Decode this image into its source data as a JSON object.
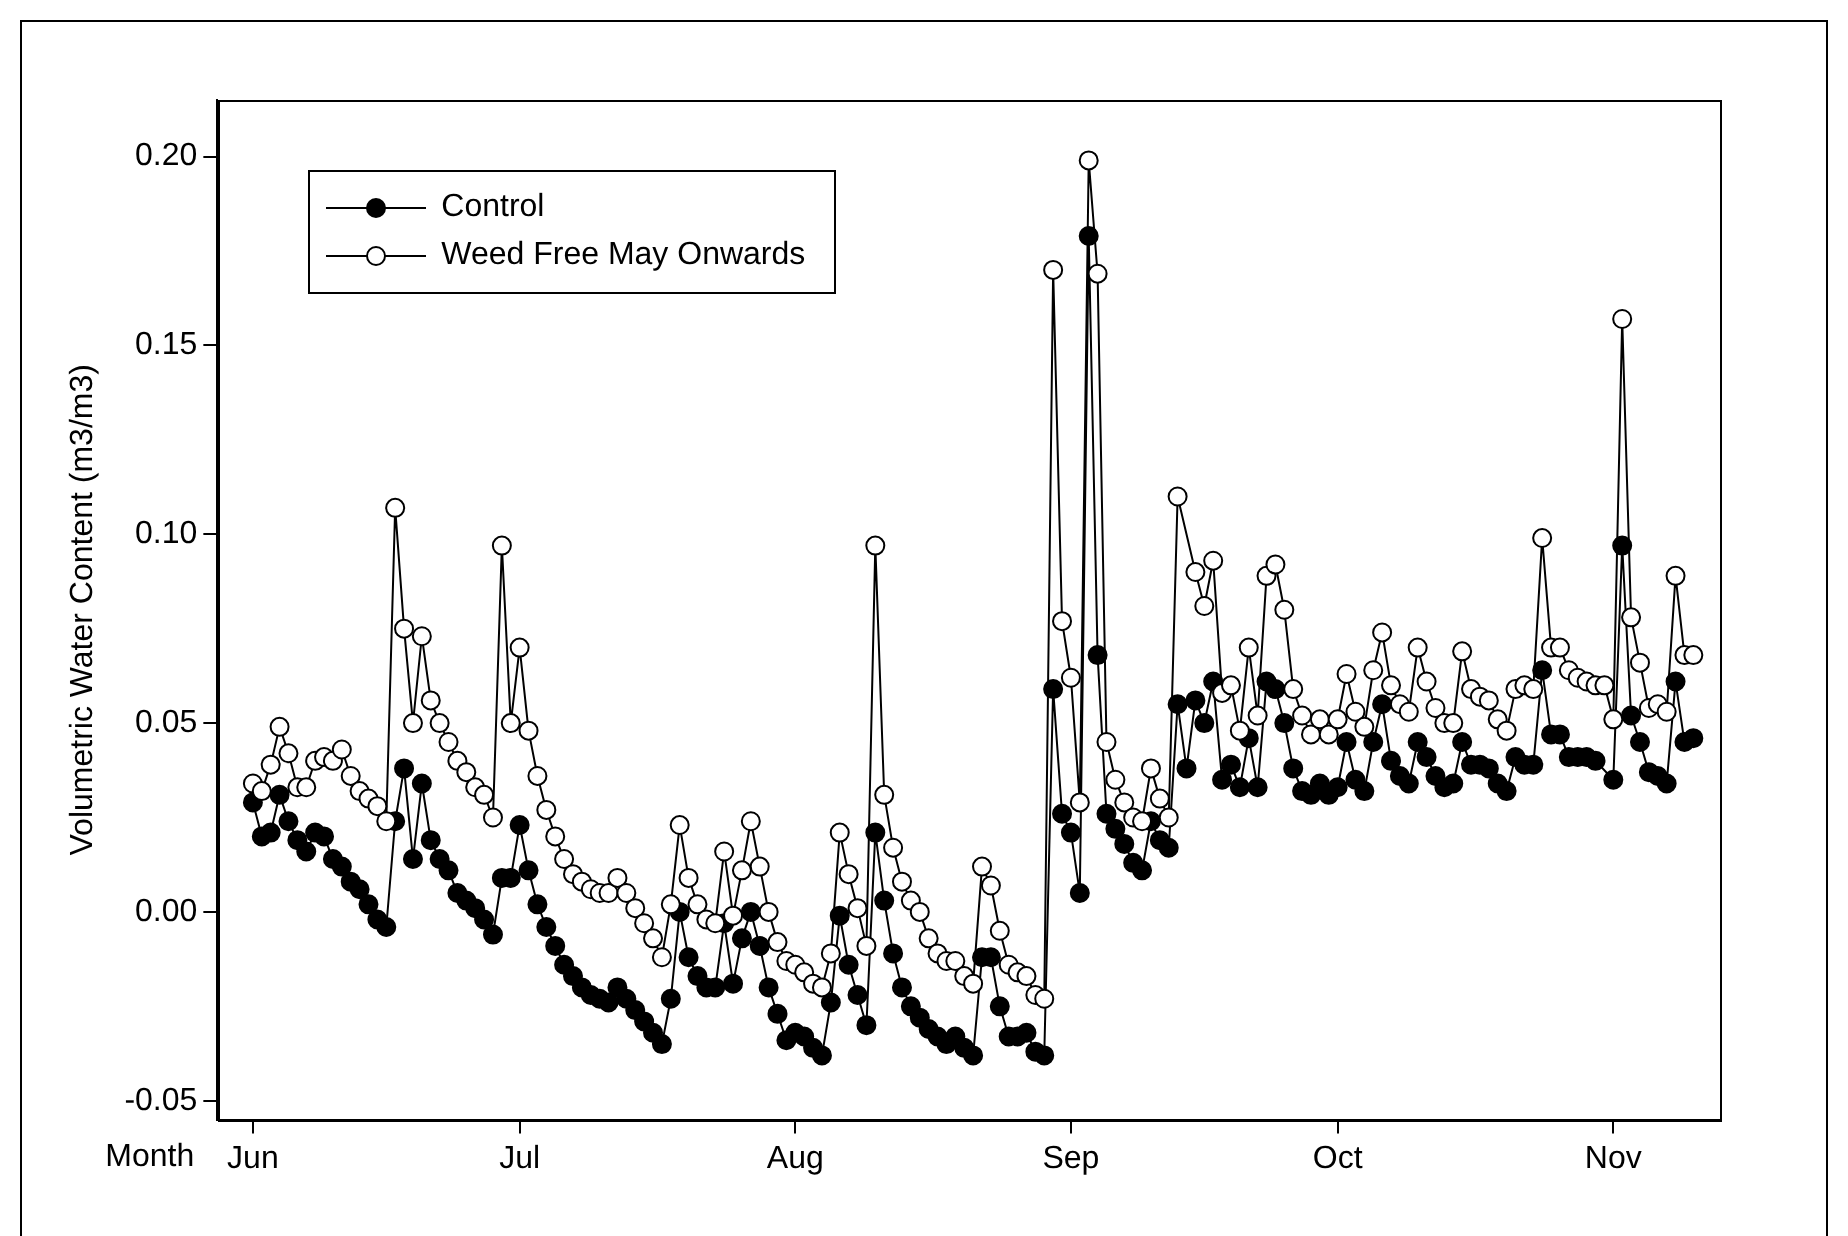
{
  "chart_data": {
    "type": "line",
    "xlabel": "Month",
    "ylabel": "Volumetric Water Content (m3/m3)",
    "x": [
      "--06-01",
      "--06-02",
      "--06-03",
      "--06-04",
      "--06-05",
      "--06-06",
      "--06-07",
      "--06-08",
      "--06-09",
      "--06-10",
      "--06-11",
      "--06-12",
      "--06-13",
      "--06-14",
      "--06-15",
      "--06-16",
      "--06-17",
      "--06-18",
      "--06-19",
      "--06-20",
      "--06-21",
      "--06-22",
      "--06-23",
      "--06-24",
      "--06-25",
      "--06-26",
      "--06-27",
      "--06-28",
      "--06-29",
      "--06-30",
      "--07-01",
      "--07-02",
      "--07-03",
      "--07-04",
      "--07-05",
      "--07-06",
      "--07-07",
      "--07-08",
      "--07-09",
      "--07-10",
      "--07-11",
      "--07-12",
      "--07-13",
      "--07-14",
      "--07-15",
      "--07-16",
      "--07-17",
      "--07-18",
      "--07-19",
      "--07-20",
      "--07-21",
      "--07-22",
      "--07-23",
      "--07-24",
      "--07-25",
      "--07-26",
      "--07-27",
      "--07-28",
      "--07-29",
      "--07-30",
      "--07-31",
      "--08-01",
      "--08-02",
      "--08-03",
      "--08-04",
      "--08-05",
      "--08-06",
      "--08-07",
      "--08-08",
      "--08-09",
      "--08-10",
      "--08-11",
      "--08-12",
      "--08-13",
      "--08-14",
      "--08-15",
      "--08-16",
      "--08-17",
      "--08-18",
      "--08-19",
      "--08-20",
      "--08-21",
      "--08-22",
      "--08-23",
      "--08-24",
      "--08-25",
      "--08-26",
      "--08-27",
      "--08-28",
      "--08-29",
      "--08-30",
      "--08-31",
      "--09-01",
      "--09-02",
      "--09-03",
      "--09-04",
      "--09-05",
      "--09-06",
      "--09-07",
      "--09-08",
      "--09-09",
      "--09-10",
      "--09-11",
      "--09-12",
      "--09-13",
      "--09-14",
      "--09-15",
      "--09-16",
      "--09-17",
      "--09-18",
      "--09-19",
      "--09-20",
      "--09-21",
      "--09-22",
      "--09-23",
      "--09-24",
      "--09-25",
      "--09-26",
      "--09-27",
      "--09-28",
      "--09-29",
      "--09-30",
      "--10-01",
      "--10-02",
      "--10-03",
      "--10-04",
      "--10-05",
      "--10-06",
      "--10-07",
      "--10-08",
      "--10-09",
      "--10-10",
      "--10-11",
      "--10-12",
      "--10-13",
      "--10-14",
      "--10-15",
      "--10-16",
      "--10-17",
      "--10-18",
      "--10-19",
      "--10-20",
      "--10-21",
      "--10-22",
      "--10-23",
      "--10-24",
      "--10-25",
      "--10-26",
      "--10-27",
      "--10-28",
      "--10-29",
      "--10-30",
      "--10-31",
      "--11-01",
      "--11-02",
      "--11-03",
      "--11-04",
      "--11-05",
      "--11-06",
      "--11-07",
      "--11-08",
      "--11-09",
      "--11-10"
    ],
    "series": [
      {
        "name": "Control",
        "color": "#000000",
        "values": [
          0.029,
          0.02,
          0.021,
          0.031,
          0.024,
          0.019,
          0.016,
          0.021,
          0.02,
          0.014,
          0.012,
          0.008,
          0.006,
          0.002,
          -0.002,
          -0.004,
          0.024,
          0.038,
          0.014,
          0.034,
          0.019,
          0.014,
          0.011,
          0.005,
          0.003,
          0.001,
          -0.002,
          -0.006,
          0.009,
          0.009,
          0.023,
          0.011,
          0.002,
          -0.004,
          -0.009,
          -0.014,
          -0.017,
          -0.02,
          -0.022,
          -0.023,
          -0.024,
          -0.02,
          -0.023,
          -0.026,
          -0.029,
          -0.032,
          -0.035,
          -0.023,
          0.0,
          -0.012,
          -0.017,
          -0.02,
          -0.02,
          -0.003,
          -0.019,
          -0.007,
          0.0,
          -0.009,
          -0.02,
          -0.027,
          -0.034,
          -0.032,
          -0.033,
          -0.036,
          -0.038,
          -0.024,
          -0.001,
          -0.014,
          -0.022,
          -0.03,
          0.021,
          0.003,
          -0.011,
          -0.02,
          -0.025,
          -0.028,
          -0.031,
          -0.033,
          -0.035,
          -0.033,
          -0.036,
          -0.038,
          -0.012,
          -0.012,
          -0.025,
          -0.033,
          -0.033,
          -0.032,
          -0.037,
          -0.038,
          0.059,
          0.026,
          0.021,
          0.005,
          0.179,
          0.068,
          0.026,
          0.022,
          0.018,
          0.013,
          0.011,
          0.024,
          0.019,
          0.017,
          0.055,
          0.038,
          0.056,
          0.05,
          0.061,
          0.035,
          0.039,
          0.033,
          0.046,
          0.033,
          0.061,
          0.059,
          0.05,
          0.038,
          0.032,
          0.031,
          0.034,
          0.031,
          0.033,
          0.045,
          0.035,
          0.032,
          0.045,
          0.055,
          0.04,
          0.036,
          0.034,
          0.045,
          0.041,
          0.036,
          0.033,
          0.034,
          0.045,
          0.039,
          0.039,
          0.038,
          0.034,
          0.032,
          0.041,
          0.039,
          0.039,
          0.064,
          0.047,
          0.047,
          0.041,
          0.041,
          0.041,
          0.04,
          null,
          0.035,
          0.097,
          0.052,
          0.045,
          0.037,
          0.036,
          0.034,
          0.061,
          0.045,
          0.046
        ]
      },
      {
        "name": "Weed Free May Onwards",
        "color": "#000000",
        "values": [
          0.034,
          0.032,
          0.039,
          0.049,
          0.042,
          0.033,
          0.033,
          0.04,
          0.041,
          0.04,
          0.043,
          0.036,
          0.032,
          0.03,
          0.028,
          0.024,
          0.107,
          0.075,
          0.05,
          0.073,
          0.056,
          0.05,
          0.045,
          0.04,
          0.037,
          0.033,
          0.031,
          0.025,
          0.097,
          0.05,
          0.07,
          0.048,
          0.036,
          0.027,
          0.02,
          0.014,
          0.01,
          0.008,
          0.006,
          0.005,
          0.005,
          0.009,
          0.005,
          0.001,
          -0.003,
          -0.007,
          -0.012,
          0.002,
          0.023,
          0.009,
          0.002,
          -0.002,
          -0.003,
          0.016,
          -0.001,
          0.011,
          0.024,
          0.012,
          0.0,
          -0.008,
          -0.013,
          -0.014,
          -0.016,
          -0.019,
          -0.02,
          -0.011,
          0.021,
          0.01,
          0.001,
          -0.009,
          0.097,
          0.031,
          0.017,
          0.008,
          0.003,
          0.0,
          -0.007,
          -0.011,
          -0.013,
          -0.013,
          -0.017,
          -0.019,
          0.012,
          0.007,
          -0.005,
          -0.014,
          -0.016,
          -0.017,
          -0.022,
          -0.023,
          0.17,
          0.077,
          0.062,
          0.029,
          0.199,
          0.169,
          0.045,
          0.035,
          0.029,
          0.025,
          0.024,
          0.038,
          0.03,
          0.025,
          0.11,
          null,
          0.09,
          0.081,
          0.093,
          0.058,
          0.06,
          0.048,
          0.07,
          0.052,
          0.089,
          0.092,
          0.08,
          0.059,
          0.052,
          0.047,
          0.051,
          0.047,
          0.051,
          0.063,
          0.053,
          0.049,
          0.064,
          0.074,
          0.06,
          0.055,
          0.053,
          0.07,
          0.061,
          0.054,
          0.05,
          0.05,
          0.069,
          0.059,
          0.057,
          0.056,
          0.051,
          0.048,
          0.059,
          0.06,
          0.059,
          0.099,
          0.07,
          0.07,
          0.064,
          0.062,
          0.061,
          0.06,
          0.06,
          0.051,
          0.157,
          0.078,
          0.066,
          0.054,
          0.055,
          0.053,
          0.089,
          0.068,
          0.068
        ]
      }
    ],
    "xlim": [
      "--05-28",
      "--11-13"
    ],
    "xticks": [
      {
        "value": "--06-01",
        "label": "Jun"
      },
      {
        "value": "--07-01",
        "label": "Jul"
      },
      {
        "value": "--08-01",
        "label": "Aug"
      },
      {
        "value": "--09-01",
        "label": "Sep"
      },
      {
        "value": "--10-01",
        "label": "Oct"
      },
      {
        "value": "--11-01",
        "label": "Nov"
      }
    ],
    "ylim": [
      -0.055,
      0.215
    ],
    "yticks": [
      -0.05,
      {
        "value": 0,
        "label": "0.00"
      },
      0.05,
      {
        "value": 0.1,
        "label": "0.10"
      },
      0.15,
      {
        "value": 0.2,
        "label": "0.20"
      }
    ],
    "grid": false,
    "legend": "top left",
    "marker": "circle",
    "line_style": "solid"
  }
}
